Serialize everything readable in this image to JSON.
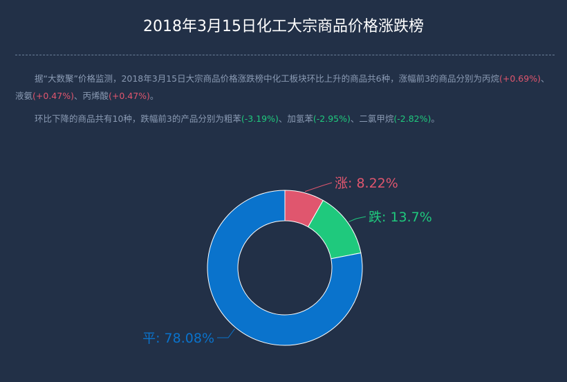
{
  "title": "2018年3月15日化工大宗商品价格涨跌榜",
  "summary": {
    "p1_prefix": "据“大数聚”价格监测，2018年3月15日大宗商品价格涨跌榜中化工板块环比上升的商品共6种，涨幅前3的商品分别为丙烷",
    "p1_v1": "(+0.69%)",
    "p1_sep1": "、液氨",
    "p1_v2": "(+0.47%)",
    "p1_sep2": "、丙烯酸",
    "p1_v3": "(+0.47%)",
    "p1_end": "。",
    "p2_prefix": "环比下降的商品共有10种，跌幅前3的产品分别为粗苯",
    "p2_v1": "(-3.19%)",
    "p2_sep1": "、加氢苯",
    "p2_v2": "(-2.95%)",
    "p2_sep2": "、二氯甲烷",
    "p2_v3": "(-2.82%)",
    "p2_end": "。"
  },
  "colors": {
    "background": "#223047",
    "up": "#e0566e",
    "down": "#1fc97d",
    "flat": "#0a73cc"
  },
  "chart_data": {
    "type": "pie",
    "title": "",
    "donut": true,
    "slices": [
      {
        "name": "涨",
        "value": 8.22,
        "label": "涨: 8.22%",
        "color": "#e0566e"
      },
      {
        "name": "跌",
        "value": 13.7,
        "label": "跌: 13.7%",
        "color": "#1fc97d"
      },
      {
        "name": "平",
        "value": 78.08,
        "label": "平: 78.08%",
        "color": "#0a73cc"
      }
    ]
  }
}
